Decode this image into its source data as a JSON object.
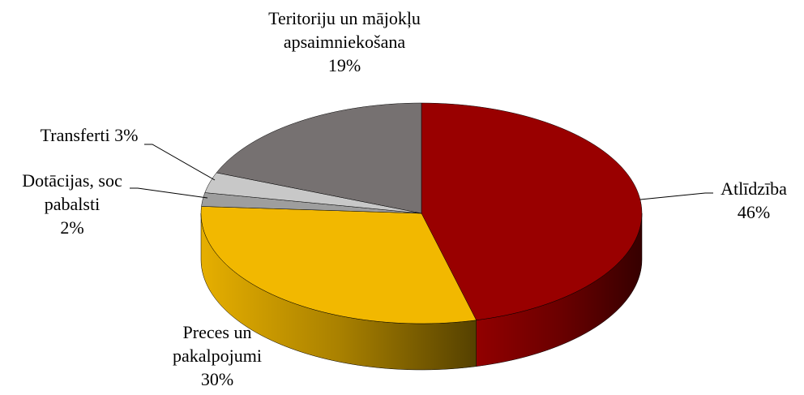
{
  "chart_data": {
    "type": "pie",
    "categories": [
      "Atlīdzība",
      "Preces un pakalpojumi",
      "Dotācijas, soc pabalsti",
      "Transferti",
      "Teritoriju un mājokļu apsaimniekošana"
    ],
    "values": [
      46,
      30,
      2,
      3,
      19
    ],
    "value_labels": [
      "46%",
      "30%",
      "2%",
      "3%",
      "19%"
    ],
    "colors": [
      "#990000",
      "#f2b800",
      "#9e9e9e",
      "#c8c8c8",
      "#767171"
    ]
  }
}
